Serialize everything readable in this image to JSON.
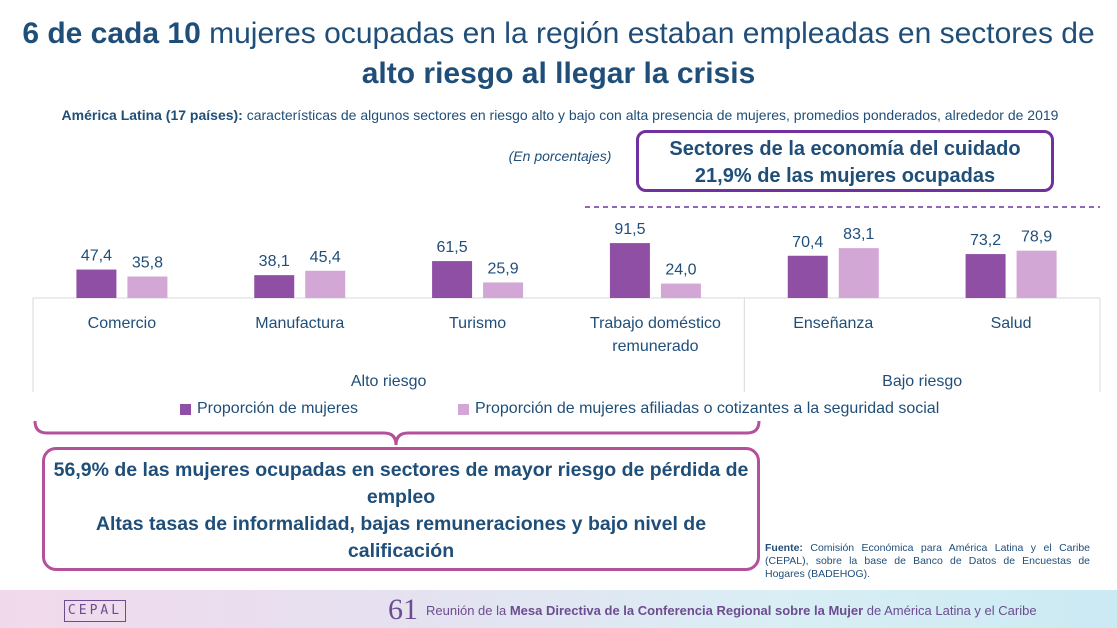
{
  "title": {
    "part1_bold": "6 de cada 10",
    "part2": " mujeres ocupadas en la región estaban empleadas en sectores de",
    "line2_bold": "alto riesgo al llegar la crisis"
  },
  "subtitle": {
    "bold": "América Latina (17 países):",
    "text": " características de algunos sectores en riesgo alto y bajo con alta presencia de mujeres, promedios ponderados, alrededor de 2019",
    "unit": "(En porcentajes)"
  },
  "care_box": {
    "line1": "Sectores de la economía del cuidado",
    "line2": "21,9% de las mujeres ocupadas"
  },
  "risk_box": {
    "line1": "56,9% de las mujeres ocupadas en sectores de mayor riesgo de pérdida de empleo",
    "line2": "Altas tasas de informalidad, bajas remuneraciones y bajo nivel de calificación"
  },
  "colors": {
    "dark_purple": "#8f4fa5",
    "light_purple": "#d2a6d5",
    "text_blue": "#1f4e79"
  },
  "chart_data": {
    "type": "bar",
    "categories": [
      "Comercio",
      "Manufactura",
      "Turismo",
      "Trabajo doméstico remunerado",
      "Enseñanza",
      "Salud"
    ],
    "category_lines": [
      [
        "Comercio"
      ],
      [
        "Manufactura"
      ],
      [
        "Turismo"
      ],
      [
        "Trabajo doméstico",
        "remunerado"
      ],
      [
        "Enseñanza"
      ],
      [
        "Salud"
      ]
    ],
    "groups": [
      {
        "label": "Alto riesgo",
        "categories": [
          0,
          1,
          2,
          3
        ]
      },
      {
        "label": "Bajo riesgo",
        "categories": [
          4,
          5
        ]
      }
    ],
    "series": [
      {
        "name": "Proporción de mujeres",
        "color": "#8f4fa5",
        "values": [
          47.4,
          38.1,
          61.5,
          91.5,
          70.4,
          73.2
        ]
      },
      {
        "name": "Proporción de mujeres afiliadas o cotizantes a la seguridad social",
        "color": "#d2a6d5",
        "values": [
          35.8,
          45.4,
          25.9,
          24.0,
          83.1,
          78.9
        ]
      }
    ],
    "value_labels": [
      [
        "47,4",
        "38,1",
        "61,5",
        "91,5",
        "70,4",
        "73,2"
      ],
      [
        "35,8",
        "45,4",
        "25,9",
        "24,0",
        "83,1",
        "78,9"
      ]
    ],
    "ylim": [
      0,
      100
    ],
    "grid": false,
    "legend_position": "bottom"
  },
  "source": {
    "label": "Fuente:",
    "text": " Comisión Económica para América Latina y el Caribe (CEPAL), sobre la base de Banco de Datos de Encuestas de Hogares (BADEHOG)."
  },
  "footer": {
    "logo": "CEPAL",
    "number": "61",
    "text_pre": "Reunión de la ",
    "text_bold": "Mesa Directiva de la Conferencia Regional sobre la Mujer",
    "text_post": " de América Latina y el Caribe"
  }
}
